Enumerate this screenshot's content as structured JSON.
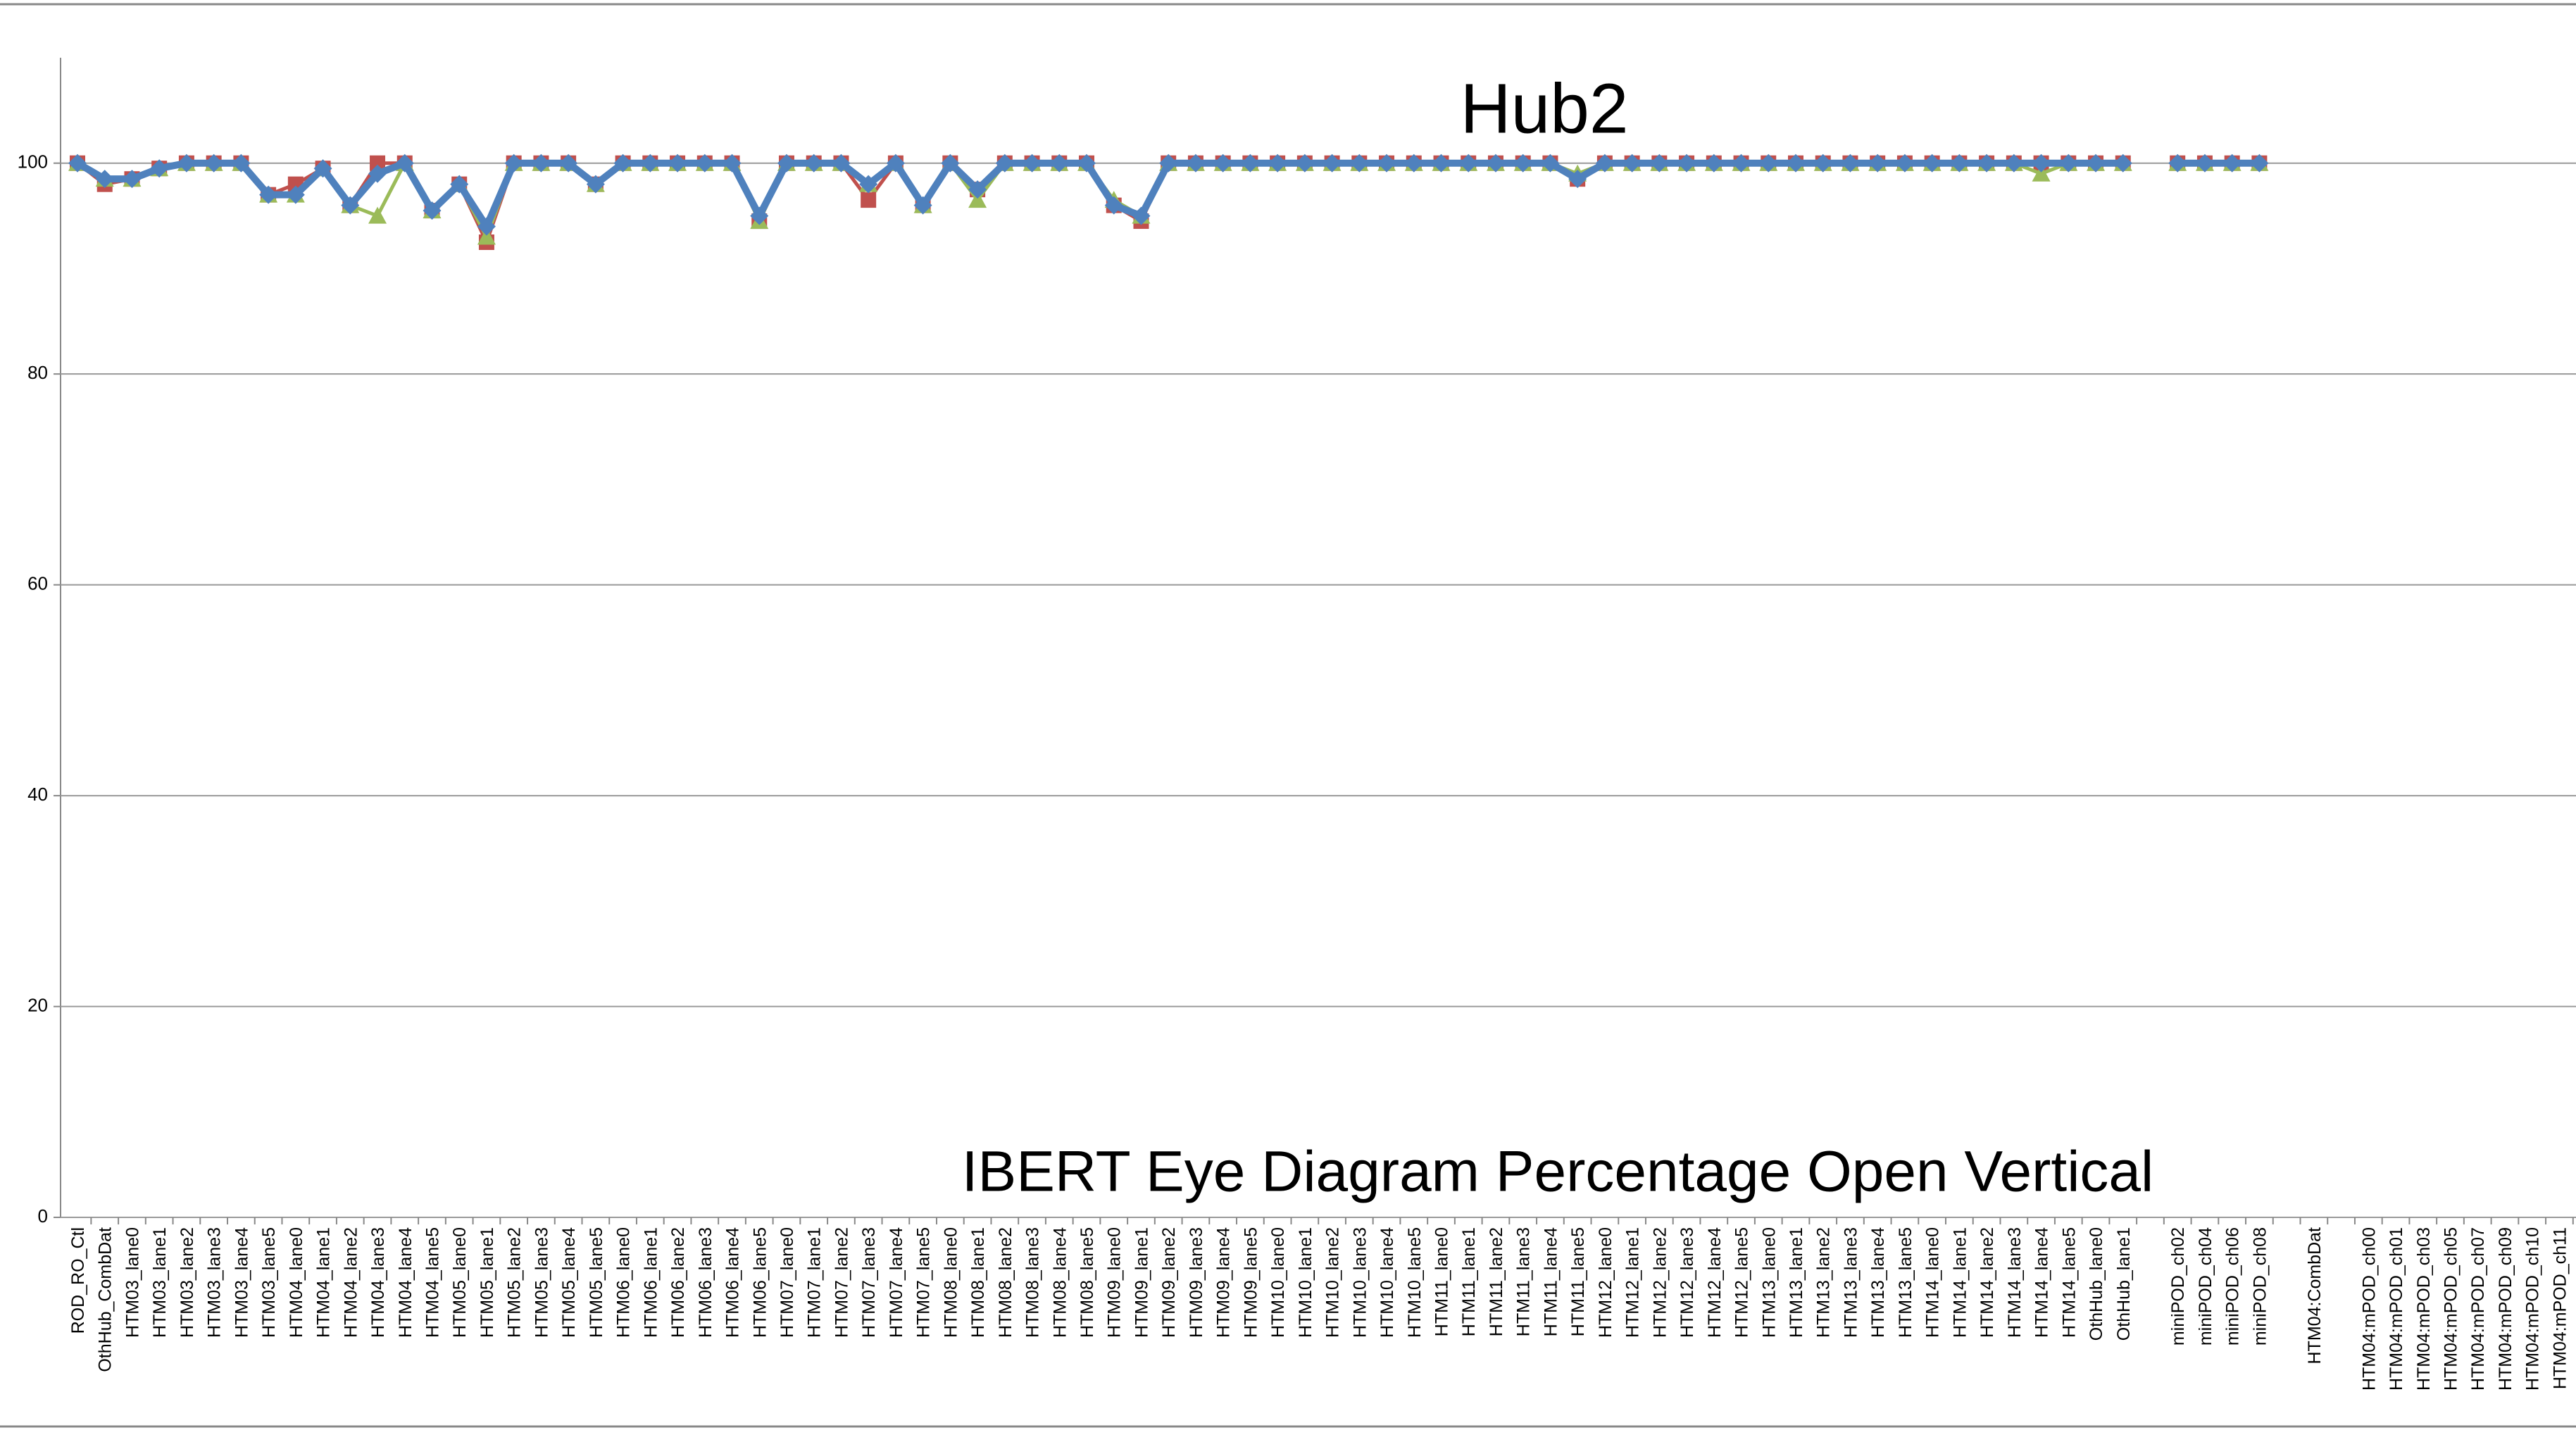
{
  "chart_data": {
    "type": "line",
    "title": "Hub2",
    "x_label": "IBERT Eye Diagram Percentage Open Vertical",
    "categories": [
      "ROD_RO_Ctl",
      "OthHub_CombDat",
      "HTM03_lane0",
      "HTM03_lane1",
      "HTM03_lane2",
      "HTM03_lane3",
      "HTM03_lane4",
      "HTM03_lane5",
      "HTM04_lane0",
      "HTM04_lane1",
      "HTM04_lane2",
      "HTM04_lane3",
      "HTM04_lane4",
      "HTM04_lane5",
      "HTM05_lane0",
      "HTM05_lane1",
      "HTM05_lane2",
      "HTM05_lane3",
      "HTM05_lane4",
      "HTM05_lane5",
      "HTM06_lane0",
      "HTM06_lane1",
      "HTM06_lane2",
      "HTM06_lane3",
      "HTM06_lane4",
      "HTM06_lane5",
      "HTM07_lane0",
      "HTM07_lane1",
      "HTM07_lane2",
      "HTM07_lane3",
      "HTM07_lane4",
      "HTM07_lane5",
      "HTM08_lane0",
      "HTM08_lane1",
      "HTM08_lane2",
      "HTM08_lane3",
      "HTM08_lane4",
      "HTM08_lane5",
      "HTM09_lane0",
      "HTM09_lane1",
      "HTM09_lane2",
      "HTM09_lane3",
      "HTM09_lane4",
      "HTM09_lane5",
      "HTM10_lane0",
      "HTM10_lane1",
      "HTM10_lane2",
      "HTM10_lane3",
      "HTM10_lane4",
      "HTM10_lane5",
      "HTM11_lane0",
      "HTM11_lane1",
      "HTM11_lane2",
      "HTM11_lane3",
      "HTM11_lane4",
      "HTM11_lane5",
      "HTM12_lane0",
      "HTM12_lane1",
      "HTM12_lane2",
      "HTM12_lane3",
      "HTM12_lane4",
      "HTM12_lane5",
      "HTM13_lane0",
      "HTM13_lane1",
      "HTM13_lane2",
      "HTM13_lane3",
      "HTM13_lane4",
      "HTM13_lane5",
      "HTM14_lane0",
      "HTM14_lane1",
      "HTM14_lane2",
      "HTM14_lane3",
      "HTM14_lane4",
      "HTM14_lane5",
      "OthHub_lane0",
      "OthHub_lane1",
      null,
      "miniPOD_ch02",
      "miniPOD_ch04",
      "miniPOD_ch06",
      "miniPOD_ch08",
      null,
      "HTM04:CombDat",
      null,
      "HTM04:mPOD_ch00",
      "HTM04:mPOD_ch01",
      "HTM04:mPOD_ch03",
      "HTM04:mPOD_ch05",
      "HTM04:mPOD_ch07",
      "HTM04:mPOD_ch09",
      "HTM04:mPOD_ch10",
      "HTM04:mPOD_ch11"
    ],
    "series": [
      {
        "color": "#c0504d",
        "marker": "square",
        "values": [
          100,
          98,
          98.5,
          99.5,
          100,
          100,
          100,
          97,
          98,
          99.5,
          96,
          100,
          100,
          95.5,
          98,
          92.5,
          100,
          100,
          100,
          98,
          100,
          100,
          100,
          100,
          100,
          94.5,
          100,
          100,
          100,
          96.5,
          100,
          96,
          100,
          97.5,
          100,
          100,
          100,
          100,
          96,
          94.5,
          100,
          100,
          100,
          100,
          100,
          100,
          100,
          100,
          100,
          100,
          100,
          100,
          100,
          100,
          100,
          98.5,
          100,
          100,
          100,
          100,
          100,
          100,
          100,
          100,
          100,
          100,
          100,
          100,
          100,
          100,
          100,
          100,
          100,
          100,
          100,
          100,
          null,
          100,
          100,
          100,
          100,
          null,
          null,
          null,
          null,
          null,
          null,
          null,
          null,
          null,
          null,
          null
        ]
      },
      {
        "color": "#9bbb59",
        "marker": "triangle",
        "values": [
          100,
          98.5,
          98.5,
          99.5,
          100,
          100,
          100,
          97,
          97,
          99.5,
          96,
          95,
          100,
          95.5,
          98,
          93,
          100,
          100,
          100,
          98,
          100,
          100,
          100,
          100,
          100,
          94.5,
          100,
          100,
          100,
          98,
          100,
          96,
          100,
          96.5,
          100,
          100,
          100,
          100,
          96.5,
          95,
          100,
          100,
          100,
          100,
          100,
          100,
          100,
          100,
          100,
          100,
          100,
          100,
          100,
          100,
          100,
          99,
          100,
          100,
          100,
          100,
          100,
          100,
          100,
          100,
          100,
          100,
          100,
          100,
          100,
          100,
          100,
          100,
          99,
          100,
          100,
          100,
          null,
          100,
          100,
          100,
          100,
          null,
          null,
          null,
          null,
          null,
          null,
          null,
          null,
          null,
          null,
          null
        ]
      },
      {
        "color": "#4f81bd",
        "marker": "diamond",
        "values": [
          100,
          98.5,
          98.5,
          99.5,
          100,
          100,
          100,
          97,
          97,
          99.5,
          96,
          99,
          100,
          95.5,
          98,
          94,
          100,
          100,
          100,
          98,
          100,
          100,
          100,
          100,
          100,
          95,
          100,
          100,
          100,
          98,
          100,
          96,
          100,
          97.5,
          100,
          100,
          100,
          100,
          96,
          95,
          100,
          100,
          100,
          100,
          100,
          100,
          100,
          100,
          100,
          100,
          100,
          100,
          100,
          100,
          100,
          98.5,
          100,
          100,
          100,
          100,
          100,
          100,
          100,
          100,
          100,
          100,
          100,
          100,
          100,
          100,
          100,
          100,
          100,
          100,
          100,
          100,
          null,
          100,
          100,
          100,
          100,
          null,
          null,
          null,
          null,
          null,
          null,
          null,
          null,
          null,
          null,
          null
        ]
      }
    ],
    "ylim": [
      0,
      110
    ],
    "yticks": [
      0,
      20,
      40,
      60,
      80,
      100
    ],
    "grid": true
  }
}
